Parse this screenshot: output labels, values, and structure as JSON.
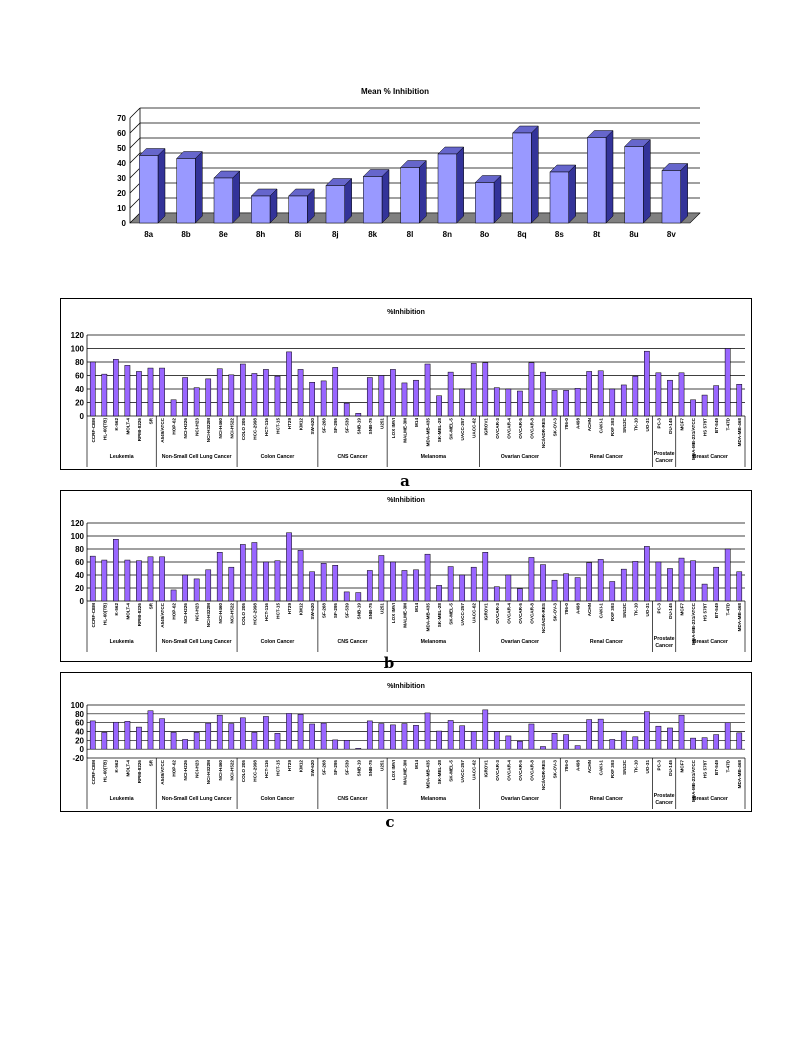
{
  "charts": [
    {
      "title": "Mean % Inhibition",
      "chart_data": {
        "type": "bar",
        "style": "3d",
        "categories": [
          "8a",
          "8b",
          "8e",
          "8h",
          "8i",
          "8j",
          "8k",
          "8l",
          "8n",
          "8o",
          "8q",
          "8s",
          "8t",
          "8u",
          "8v"
        ],
        "values": [
          45,
          43,
          30,
          18,
          18,
          25,
          31,
          37,
          46,
          27,
          60,
          34,
          57,
          51,
          35
        ],
        "ylim": [
          0,
          70
        ],
        "yticks": [
          0,
          10,
          20,
          30,
          40,
          50,
          60,
          70
        ],
        "grid": true,
        "bar_color": "#9999FF"
      }
    },
    {
      "title": "%Inhibition",
      "label": "a",
      "chart_data": {
        "type": "bar",
        "ylim": [
          0,
          120
        ],
        "yticks": [
          0,
          20,
          40,
          60,
          80,
          100,
          120
        ],
        "grid": true,
        "bar_color": "#9966FF",
        "categories": [
          "CCRF-CEM",
          "HL-60(TB)",
          "K-562",
          "MOLT-4",
          "RPMI-8226",
          "SR",
          "A549/ATCC",
          "HOP-62",
          "NCI-H226",
          "NCI-H23",
          "NCI-H322M",
          "NCI-H460",
          "NCI-H522",
          "COLO 205",
          "HCC-2998",
          "HCT-116",
          "HCT-15",
          "HT29",
          "KM12",
          "SW-620",
          "SF-268",
          "SF-295",
          "SF-539",
          "SNB-19",
          "SNB-75",
          "U251",
          "LOX IMVI",
          "MALME-3M",
          "M14",
          "MDA-MB-435",
          "SK-MEL-28",
          "SK-MEL-5",
          "UACC-257",
          "UACC-62",
          "IGROV1",
          "OVCAR-3",
          "OVCAR-4",
          "OVCAR-5",
          "OVCAR-8",
          "NCI/ADR-RES",
          "SK-OV-3",
          "786-0",
          "A498",
          "ACHN",
          "CAKI-1",
          "RXF 393",
          "SN12C",
          "TK-10",
          "UO-31",
          "PC-3",
          "DU-145",
          "MCF7",
          "MDA-MB-231/ATCC",
          "HS 578T",
          "BT-549",
          "T-47D",
          "MDA-MB-468"
        ],
        "values": [
          80,
          62,
          84,
          75,
          66,
          71,
          71,
          24,
          57,
          42,
          55,
          70,
          61,
          77,
          63,
          69,
          59,
          95,
          69,
          50,
          52,
          72,
          19,
          4,
          57,
          60,
          69,
          49,
          53,
          77,
          30,
          65,
          40,
          78,
          79,
          42,
          40,
          37,
          79,
          65,
          38,
          38,
          41,
          66,
          67,
          40,
          46,
          59,
          96,
          64,
          53,
          64,
          24,
          31,
          45,
          100,
          47
        ],
        "groups": [
          {
            "label": "Leukemia",
            "count": 6
          },
          {
            "label": "Non-Small Cell Lung Cancer",
            "count": 7
          },
          {
            "label": "Colon Cancer",
            "count": 7
          },
          {
            "label": "CNS Cancer",
            "count": 6
          },
          {
            "label": "Melanoma",
            "count": 8
          },
          {
            "label": "Ovarian Cancer",
            "count": 7
          },
          {
            "label": "Renal Cancer",
            "count": 8
          },
          {
            "label": "Prostate Cancer",
            "count": 2
          },
          {
            "label": "Breast Cancer",
            "count": 6
          }
        ]
      }
    },
    {
      "title": "%Inhibition",
      "label": "b",
      "chart_data": {
        "type": "bar",
        "ylim": [
          0,
          120
        ],
        "yticks": [
          0,
          20,
          40,
          60,
          80,
          100,
          120
        ],
        "grid": true,
        "bar_color": "#9966FF",
        "categories": [
          "CCRF-CEM",
          "HL-60(TB)",
          "K-562",
          "MOLT-4",
          "RPMI-8226",
          "SR",
          "A549/ATCC",
          "HOP-62",
          "NCI-H226",
          "NCI-H23",
          "NCI-H322M",
          "NCI-H460",
          "NCI-H522",
          "COLO 205",
          "HCC-2998",
          "HCT-116",
          "HCT-15",
          "HT29",
          "KM12",
          "SW-620",
          "SF-268",
          "SF-295",
          "SF-539",
          "SNB-19",
          "SNB-75",
          "U251",
          "LOX IMVI",
          "MALME-3M",
          "M14",
          "MDA-MB-435",
          "SK-MEL-28",
          "SK-MEL-5",
          "UACC-257",
          "UACC-62",
          "IGROV1",
          "OVCAR-3",
          "OVCAR-4",
          "OVCAR-5",
          "OVCAR-8",
          "NCI/ADR-RES",
          "SK-OV-3",
          "786-0",
          "A498",
          "ACHN",
          "CAKI-1",
          "RXF 393",
          "SN12C",
          "TK-10",
          "UO-31",
          "PC-3",
          "DU-145",
          "MCF7",
          "MDA-MB-231/ATCC",
          "HS 578T",
          "BT-549",
          "T-47D",
          "MDA-MB-468"
        ],
        "values": [
          69,
          63,
          95,
          63,
          62,
          68,
          68,
          17,
          40,
          34,
          48,
          75,
          52,
          87,
          90,
          60,
          62,
          105,
          78,
          45,
          58,
          55,
          14,
          13,
          47,
          70,
          60,
          47,
          48,
          72,
          24,
          53,
          40,
          52,
          75,
          22,
          40,
          19,
          67,
          56,
          32,
          42,
          36,
          59,
          64,
          30,
          49,
          61,
          84,
          60,
          50,
          66,
          62,
          26,
          52,
          80,
          45
        ],
        "groups": [
          {
            "label": "Leukemia",
            "count": 6
          },
          {
            "label": "Non-Small Cell Lung Cancer",
            "count": 7
          },
          {
            "label": "Colon Cancer",
            "count": 7
          },
          {
            "label": "CNS Cancer",
            "count": 6
          },
          {
            "label": "Melanoma",
            "count": 8
          },
          {
            "label": "Ovarian Cancer",
            "count": 7
          },
          {
            "label": "Renal Cancer",
            "count": 8
          },
          {
            "label": "Prostate Cancer",
            "count": 2
          },
          {
            "label": "Breast Cancer",
            "count": 6
          }
        ]
      }
    },
    {
      "title": "%Inhibition",
      "label": "c",
      "chart_data": {
        "type": "bar",
        "ylim": [
          -20,
          100
        ],
        "yticks": [
          -20,
          0,
          20,
          40,
          60,
          80,
          100
        ],
        "grid": true,
        "bar_color": "#9966FF",
        "categories": [
          "CCRF-CEM",
          "HL-60(TB)",
          "K-562",
          "MOLT-4",
          "RPMI-8226",
          "SR",
          "A549/ATCC",
          "HOP-62",
          "NCI-H226",
          "NCI-H23",
          "NCI-H322M",
          "NCI-H460",
          "NCI-H522",
          "COLO 205",
          "HCC-2998",
          "HCT-116",
          "HCT-15",
          "HT29",
          "KM12",
          "SW-620",
          "SF-268",
          "SF-295",
          "SF-539",
          "SNB-19",
          "SNB-75",
          "U251",
          "LOX IMVI",
          "MALME-3M",
          "M14",
          "MDA-MB-435",
          "SK-MEL-28",
          "SK-MEL-5",
          "UACC-257",
          "UACC-62",
          "IGROV1",
          "OVCAR-3",
          "OVCAR-4",
          "OVCAR-5",
          "OVCAR-8",
          "NCI/ADR-RES",
          "SK-OV-3",
          "786-0",
          "A498",
          "ACHN",
          "CAKI-1",
          "RXF 393",
          "SN12C",
          "TK-10",
          "UO-31",
          "PC-3",
          "DU-145",
          "MCF7",
          "MDA-MB-231/ATCC",
          "HS 578T",
          "BT-549",
          "T-47D",
          "MDA-MB-468"
        ],
        "values": [
          64,
          38,
          61,
          63,
          50,
          87,
          69,
          38,
          22,
          38,
          59,
          77,
          58,
          71,
          38,
          74,
          36,
          81,
          79,
          57,
          59,
          21,
          20,
          2,
          64,
          58,
          55,
          58,
          54,
          82,
          41,
          65,
          53,
          40,
          89,
          40,
          30,
          18,
          57,
          6,
          36,
          33,
          8,
          67,
          68,
          22,
          41,
          28,
          85,
          52,
          48,
          77,
          25,
          26,
          33,
          60,
          37
        ],
        "groups": [
          {
            "label": "Leukemia",
            "count": 6
          },
          {
            "label": "Non-Small Cell Lung Cancer",
            "count": 7
          },
          {
            "label": "Colon Cancer",
            "count": 7
          },
          {
            "label": "CNS Cancer",
            "count": 6
          },
          {
            "label": "Melanoma",
            "count": 8
          },
          {
            "label": "Ovarian Cancer",
            "count": 7
          },
          {
            "label": "Renal Cancer",
            "count": 8
          },
          {
            "label": "Prostate Cancer",
            "count": 2
          },
          {
            "label": "Breast Cancer",
            "count": 6
          }
        ]
      }
    }
  ]
}
